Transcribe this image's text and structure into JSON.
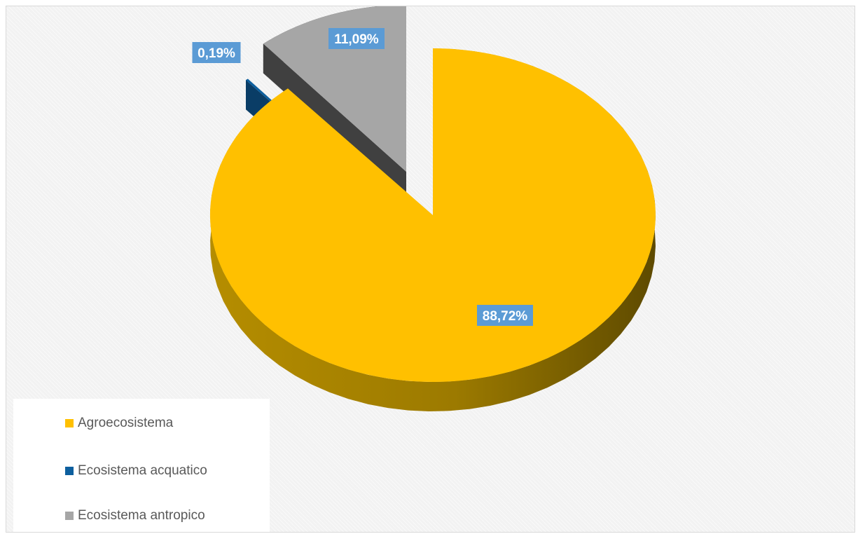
{
  "chart_data": {
    "type": "pie",
    "title": "",
    "categories": [
      "Agroecosistema",
      "Ecosistema acquatico",
      "Ecosistema antropico"
    ],
    "values": [
      88.72,
      0.19,
      11.09
    ],
    "labels": [
      "88,72%",
      "0,19%",
      "11,09%"
    ],
    "colors": [
      "#ffc000",
      "#0d5f9e",
      "#a6a6a6"
    ],
    "side_colors": [
      "#9c7a00",
      "#0a3d66",
      "#404040"
    ],
    "label_box_color": "#5b9bd5",
    "three_d": true,
    "exploded": true,
    "legend_position": "bottom-left"
  }
}
